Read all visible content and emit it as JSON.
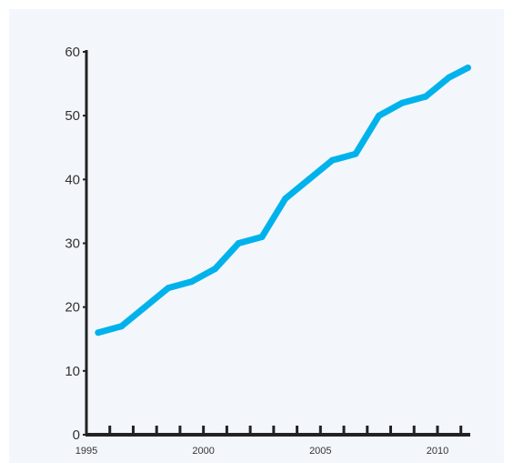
{
  "chart_data": {
    "type": "line",
    "title": "",
    "xlabel": "",
    "ylabel": "",
    "xlim": [
      1995,
      2011.4
    ],
    "ylim": [
      0,
      60
    ],
    "x_ticks": [
      1995,
      2000,
      2005,
      2010
    ],
    "x_tick_labels": [
      "1995",
      "2000",
      "2005",
      "2010"
    ],
    "x_minor_ticks": [
      1996,
      1997,
      1998,
      1999,
      2000,
      2001,
      2002,
      2003,
      2004,
      2005,
      2006,
      2007,
      2008,
      2009,
      2010,
      2011
    ],
    "y_ticks": [
      0,
      10,
      20,
      30,
      40,
      50,
      60
    ],
    "y_tick_labels": [
      "0",
      "10",
      "20",
      "30",
      "40",
      "50",
      "60"
    ],
    "grid": false,
    "legend": "none",
    "series": [
      {
        "color": "#00b2ec",
        "x": [
          1995.5,
          1996.5,
          1997.5,
          1998.5,
          1999.5,
          2000.5,
          2001.5,
          2002.5,
          2003.5,
          2004.5,
          2005.5,
          2006.5,
          2007.5,
          2008.5,
          2009.5,
          2010.5,
          2011.3
        ],
        "values": [
          16,
          17,
          20,
          23,
          24,
          26,
          30,
          31,
          37,
          40,
          43,
          44,
          50,
          52,
          53,
          56,
          57.5
        ]
      }
    ]
  },
  "colors": {
    "panel_background": "#f3f7fc",
    "axis": "#222222",
    "text": "#333333",
    "line": "#00b2ec"
  }
}
